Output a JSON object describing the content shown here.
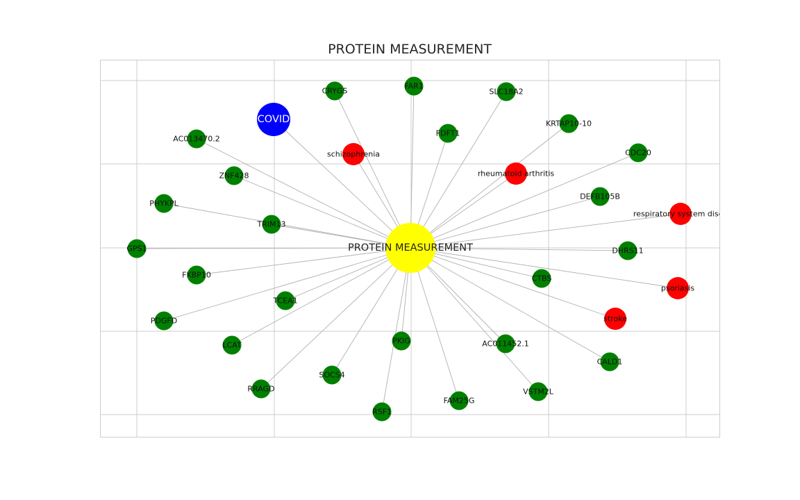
{
  "title": "PROTEIN MEASUREMENT",
  "colors": {
    "hub": "#ffff00",
    "gene": "#008000",
    "disease": "#ff0000",
    "covid": "#0000ff",
    "edge": "#b0b0b0",
    "grid": "#cccccc"
  },
  "hub": {
    "id": "PROTEIN MEASUREMENT",
    "label": "PROTEIN MEASUREMENT",
    "type": "hub"
  },
  "covid_node": {
    "id": "COVID",
    "label": "COVID",
    "type": "covid"
  },
  "nodes": [
    {
      "id": "CRYGS",
      "label": "CRYGS",
      "type": "gene"
    },
    {
      "id": "FAR1",
      "label": "FAR1",
      "type": "gene"
    },
    {
      "id": "SLC18A2",
      "label": "SLC18A2",
      "type": "gene"
    },
    {
      "id": "KRTAP10-10",
      "label": "KRTAP10-10",
      "type": "gene"
    },
    {
      "id": "FDFT1",
      "label": "FDFT1",
      "type": "gene"
    },
    {
      "id": "schizophrenia",
      "label": "schizophrenia",
      "type": "disease"
    },
    {
      "id": "AC013470.2",
      "label": "AC013470.2",
      "type": "gene"
    },
    {
      "id": "CDC20",
      "label": "CDC20",
      "type": "gene"
    },
    {
      "id": "rheumatoid arthritis",
      "label": "rheumatoid arthritis",
      "type": "disease"
    },
    {
      "id": "ZNF428",
      "label": "ZNF428",
      "type": "gene"
    },
    {
      "id": "DEFB105B",
      "label": "DEFB105B",
      "type": "gene"
    },
    {
      "id": "PHYKPL",
      "label": "PHYKPL",
      "type": "gene"
    },
    {
      "id": "respiratory system disea",
      "label": "respiratory system disea",
      "type": "disease"
    },
    {
      "id": "TRIM13",
      "label": "TRIM13",
      "type": "gene"
    },
    {
      "id": "GPS1",
      "label": "GPS1",
      "type": "gene"
    },
    {
      "id": "DHRS11",
      "label": "DHRS11",
      "type": "gene"
    },
    {
      "id": "FKBP10",
      "label": "FKBP10",
      "type": "gene"
    },
    {
      "id": "CTBS",
      "label": "CTBS",
      "type": "gene"
    },
    {
      "id": "psoriasis",
      "label": "psoriasis",
      "type": "disease"
    },
    {
      "id": "TCEA1",
      "label": "TCEA1",
      "type": "gene"
    },
    {
      "id": "PDGFD",
      "label": "PDGFD",
      "type": "gene"
    },
    {
      "id": "stroke",
      "label": "stroke",
      "type": "disease"
    },
    {
      "id": "LCAT",
      "label": "LCAT",
      "type": "gene"
    },
    {
      "id": "PKIG",
      "label": "PKIG",
      "type": "gene"
    },
    {
      "id": "AC011452.1",
      "label": "AC011452.1",
      "type": "gene"
    },
    {
      "id": "CALD1",
      "label": "CALD1",
      "type": "gene"
    },
    {
      "id": "SOCS4",
      "label": "SOCS4",
      "type": "gene"
    },
    {
      "id": "RRAGD",
      "label": "RRAGD",
      "type": "gene"
    },
    {
      "id": "VSTM2L",
      "label": "VSTM2L",
      "type": "gene"
    },
    {
      "id": "FAM25G",
      "label": "FAM25G",
      "type": "gene"
    },
    {
      "id": "RSF1",
      "label": "RSF1",
      "type": "gene"
    }
  ],
  "edges": [
    [
      "PROTEIN MEASUREMENT",
      "COVID"
    ],
    [
      "PROTEIN MEASUREMENT",
      "CRYGS"
    ],
    [
      "PROTEIN MEASUREMENT",
      "FAR1"
    ],
    [
      "PROTEIN MEASUREMENT",
      "SLC18A2"
    ],
    [
      "PROTEIN MEASUREMENT",
      "KRTAP10-10"
    ],
    [
      "PROTEIN MEASUREMENT",
      "FDFT1"
    ],
    [
      "PROTEIN MEASUREMENT",
      "schizophrenia"
    ],
    [
      "PROTEIN MEASUREMENT",
      "AC013470.2"
    ],
    [
      "PROTEIN MEASUREMENT",
      "CDC20"
    ],
    [
      "PROTEIN MEASUREMENT",
      "rheumatoid arthritis"
    ],
    [
      "PROTEIN MEASUREMENT",
      "ZNF428"
    ],
    [
      "PROTEIN MEASUREMENT",
      "DEFB105B"
    ],
    [
      "PROTEIN MEASUREMENT",
      "PHYKPL"
    ],
    [
      "PROTEIN MEASUREMENT",
      "respiratory system disea"
    ],
    [
      "PROTEIN MEASUREMENT",
      "TRIM13"
    ],
    [
      "PROTEIN MEASUREMENT",
      "GPS1"
    ],
    [
      "PROTEIN MEASUREMENT",
      "DHRS11"
    ],
    [
      "PROTEIN MEASUREMENT",
      "FKBP10"
    ],
    [
      "PROTEIN MEASUREMENT",
      "CTBS"
    ],
    [
      "PROTEIN MEASUREMENT",
      "psoriasis"
    ],
    [
      "PROTEIN MEASUREMENT",
      "TCEA1"
    ],
    [
      "PROTEIN MEASUREMENT",
      "PDGFD"
    ],
    [
      "PROTEIN MEASUREMENT",
      "stroke"
    ],
    [
      "PROTEIN MEASUREMENT",
      "LCAT"
    ],
    [
      "PROTEIN MEASUREMENT",
      "PKIG"
    ],
    [
      "PROTEIN MEASUREMENT",
      "AC011452.1"
    ],
    [
      "PROTEIN MEASUREMENT",
      "CALD1"
    ],
    [
      "PROTEIN MEASUREMENT",
      "SOCS4"
    ],
    [
      "PROTEIN MEASUREMENT",
      "RRAGD"
    ],
    [
      "PROTEIN MEASUREMENT",
      "VSTM2L"
    ],
    [
      "PROTEIN MEASUREMENT",
      "FAM25G"
    ],
    [
      "PROTEIN MEASUREMENT",
      "RSF1"
    ]
  ]
}
